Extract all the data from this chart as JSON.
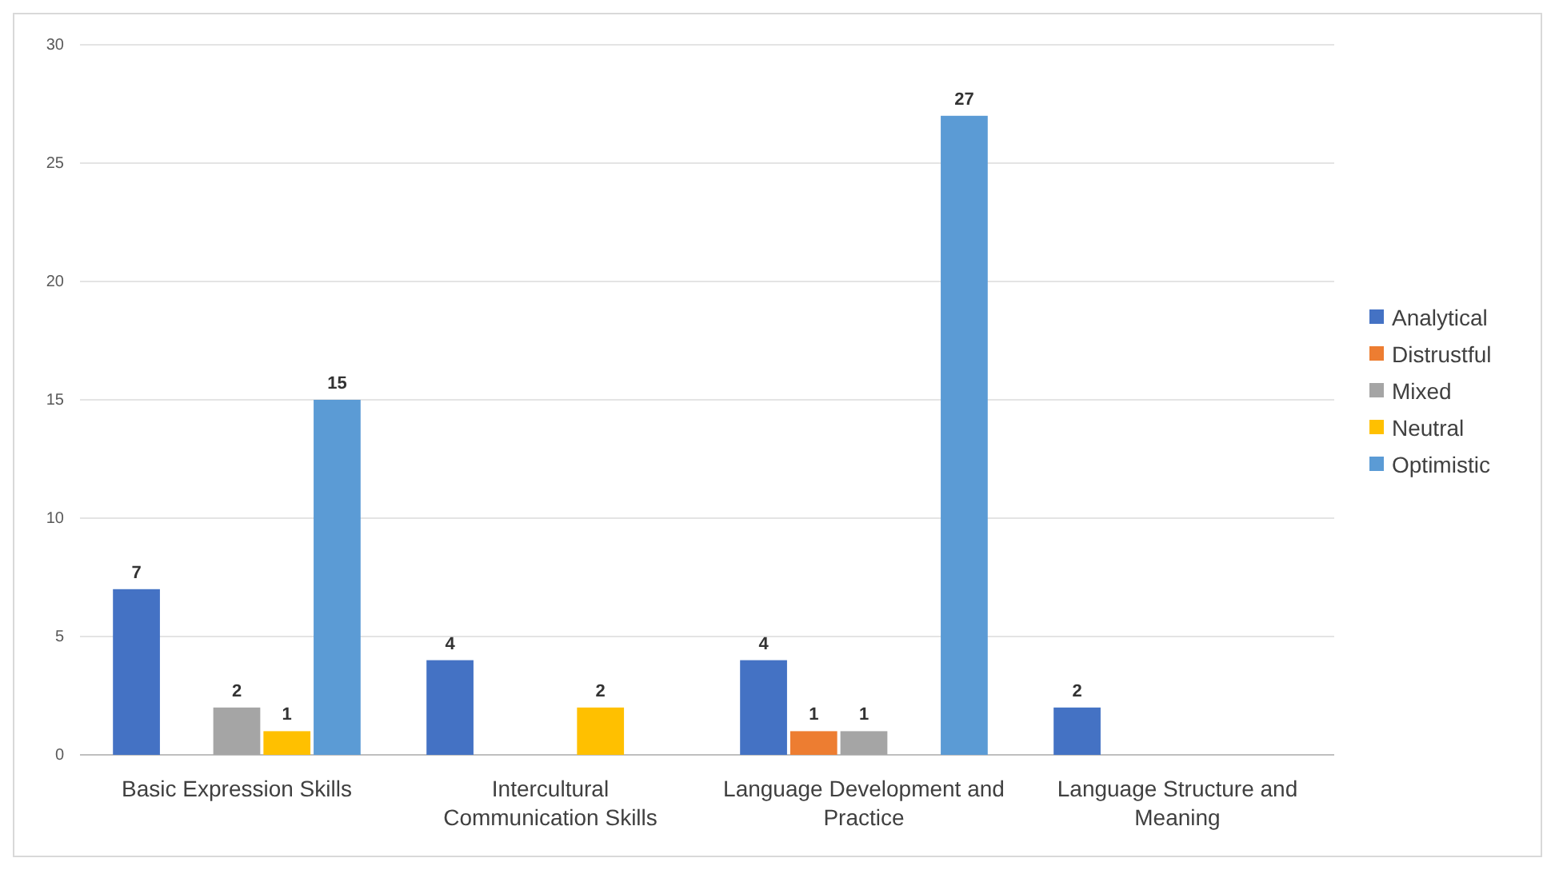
{
  "chart_data": {
    "type": "bar",
    "categories": [
      "Basic Expression Skills",
      "Intercultural Communication Skills",
      "Language Development and Practice",
      "Language Structure and Meaning"
    ],
    "series": [
      {
        "name": "Analytical",
        "color": "#4472c4",
        "values": [
          7,
          4,
          4,
          2
        ]
      },
      {
        "name": "Distrustful",
        "color": "#ed7d31",
        "values": [
          null,
          null,
          1,
          null
        ]
      },
      {
        "name": "Mixed",
        "color": "#a5a5a5",
        "values": [
          2,
          null,
          1,
          null
        ]
      },
      {
        "name": "Neutral",
        "color": "#ffc000",
        "values": [
          1,
          2,
          null,
          null
        ]
      },
      {
        "name": "Optimistic",
        "color": "#5b9bd5",
        "values": [
          15,
          null,
          27,
          null
        ]
      }
    ],
    "ylim": [
      0,
      30
    ],
    "yticks": [
      0,
      5,
      10,
      15,
      20,
      25,
      30
    ],
    "grid": "y",
    "legend": "right",
    "data_labels": true
  }
}
